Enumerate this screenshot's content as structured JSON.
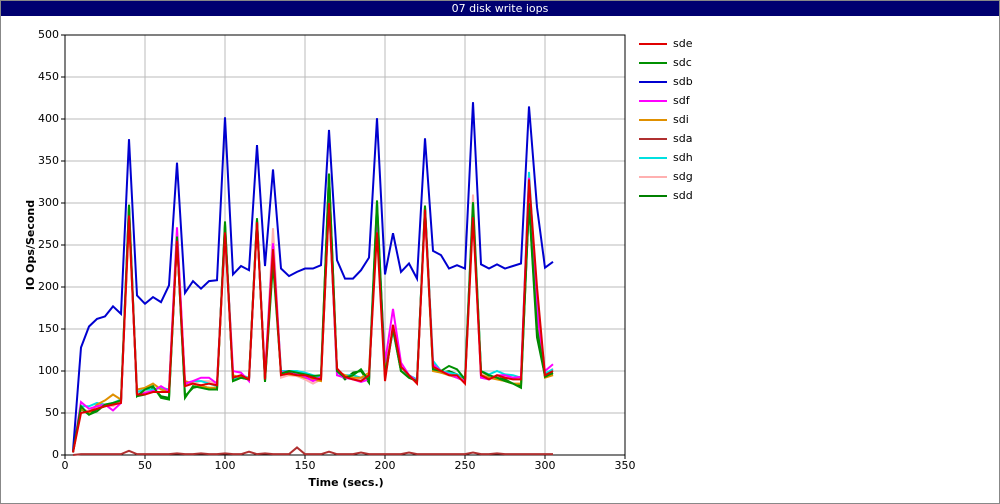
{
  "chart_data": {
    "type": "line",
    "title": "07 disk write iops",
    "x_label": "Time (secs.)",
    "y_label": "IO Ops/Second",
    "x": [
      5,
      10,
      15,
      20,
      25,
      30,
      35,
      40,
      45,
      50,
      55,
      60,
      65,
      70,
      75,
      80,
      85,
      90,
      95,
      100,
      105,
      110,
      115,
      120,
      125,
      130,
      135,
      140,
      145,
      150,
      155,
      160,
      165,
      170,
      175,
      180,
      185,
      190,
      195,
      200,
      205,
      210,
      215,
      220,
      225,
      230,
      235,
      240,
      245,
      250,
      255,
      260,
      265,
      270,
      275,
      280,
      285,
      290,
      295,
      300,
      305
    ],
    "xlim": [
      0,
      350
    ],
    "xticks": [
      0,
      50,
      100,
      150,
      200,
      250,
      300,
      350
    ],
    "ylim": [
      0,
      500
    ],
    "yticks": [
      0,
      50,
      100,
      150,
      200,
      250,
      300,
      350,
      400,
      450,
      500
    ],
    "grid": true,
    "legend": "right",
    "series": [
      {
        "name": "sde",
        "color": "#e00000",
        "values": [
          3,
          50,
          52,
          55,
          58,
          60,
          62,
          285,
          72,
          72,
          75,
          75,
          75,
          255,
          82,
          85,
          83,
          85,
          83,
          265,
          92,
          95,
          90,
          277,
          90,
          245,
          95,
          97,
          95,
          95,
          92,
          90,
          300,
          103,
          93,
          90,
          88,
          95,
          265,
          88,
          155,
          105,
          95,
          85,
          292,
          105,
          100,
          95,
          95,
          85,
          283,
          95,
          90,
          95,
          92,
          90,
          90,
          328,
          200,
          95,
          100
        ]
      },
      {
        "name": "sdc",
        "color": "#009000",
        "values": [
          3,
          58,
          48,
          52,
          60,
          62,
          65,
          297,
          70,
          78,
          82,
          68,
          66,
          260,
          68,
          82,
          80,
          78,
          78,
          278,
          88,
          92,
          90,
          282,
          87,
          228,
          97,
          100,
          98,
          96,
          94,
          95,
          335,
          100,
          92,
          95,
          102,
          88,
          303,
          95,
          150,
          100,
          92,
          88,
          297,
          102,
          100,
          106,
          102,
          90,
          301,
          100,
          95,
          92,
          88,
          85,
          80,
          300,
          150,
          93,
          98
        ]
      },
      {
        "name": "sdb",
        "color": "#0000d0",
        "values": [
          5,
          128,
          153,
          162,
          165,
          177,
          168,
          376,
          190,
          180,
          188,
          182,
          202,
          348,
          193,
          207,
          198,
          207,
          208,
          402,
          215,
          225,
          220,
          369,
          225,
          340,
          222,
          213,
          218,
          222,
          222,
          226,
          387,
          232,
          210,
          210,
          220,
          235,
          401,
          215,
          264,
          218,
          228,
          210,
          377,
          243,
          238,
          222,
          226,
          222,
          420,
          227,
          222,
          227,
          222,
          225,
          228,
          415,
          295,
          223,
          230
        ]
      },
      {
        "name": "sdf",
        "color": "#ff00ff",
        "values": [
          3,
          63,
          55,
          58,
          60,
          53,
          62,
          290,
          72,
          74,
          76,
          82,
          76,
          271,
          85,
          88,
          92,
          92,
          85,
          270,
          100,
          98,
          88,
          278,
          95,
          252,
          98,
          100,
          97,
          93,
          88,
          93,
          310,
          95,
          92,
          90,
          87,
          90,
          285,
          110,
          174,
          110,
          95,
          88,
          290,
          108,
          100,
          96,
          92,
          88,
          290,
          92,
          90,
          95,
          95,
          92,
          93,
          330,
          170,
          100,
          108
        ]
      },
      {
        "name": "sdi",
        "color": "#e09000",
        "values": [
          3,
          55,
          50,
          60,
          65,
          72,
          66,
          280,
          78,
          80,
          85,
          78,
          75,
          258,
          88,
          85,
          82,
          80,
          80,
          270,
          95,
          92,
          92,
          275,
          92,
          240,
          98,
          96,
          95,
          92,
          90,
          88,
          305,
          100,
          95,
          92,
          92,
          98,
          280,
          100,
          150,
          100,
          92,
          88,
          288,
          100,
          98,
          95,
          92,
          88,
          290,
          95,
          92,
          90,
          88,
          85,
          85,
          320,
          160,
          92,
          95
        ]
      },
      {
        "name": "sda",
        "color": "#b03030",
        "values": [
          0,
          1,
          1,
          1,
          1,
          1,
          1,
          5,
          1,
          1,
          1,
          1,
          1,
          2,
          1,
          1,
          2,
          1,
          1,
          2,
          1,
          1,
          4,
          1,
          2,
          1,
          1,
          1,
          9,
          1,
          1,
          1,
          4,
          1,
          1,
          1,
          3,
          1,
          1,
          1,
          1,
          1,
          3,
          1,
          1,
          1,
          1,
          1,
          1,
          1,
          3,
          1,
          1,
          2,
          1,
          1,
          1,
          1,
          1,
          1,
          1
        ]
      },
      {
        "name": "sdh",
        "color": "#00e0e0",
        "values": [
          3,
          58,
          58,
          62,
          60,
          62,
          66,
          290,
          75,
          78,
          78,
          80,
          78,
          262,
          85,
          88,
          88,
          85,
          82,
          272,
          90,
          95,
          92,
          280,
          92,
          248,
          100,
          100,
          100,
          98,
          95,
          92,
          300,
          98,
          95,
          95,
          92,
          95,
          300,
          98,
          148,
          100,
          95,
          90,
          295,
          112,
          100,
          98,
          96,
          92,
          300,
          100,
          96,
          100,
          96,
          95,
          92,
          337,
          180,
          97,
          102
        ]
      },
      {
        "name": "sdg",
        "color": "#ffb0b0",
        "values": [
          3,
          55,
          52,
          58,
          60,
          58,
          65,
          288,
          73,
          75,
          78,
          80,
          78,
          265,
          83,
          86,
          88,
          88,
          84,
          268,
          92,
          95,
          92,
          278,
          90,
          270,
          92,
          95,
          94,
          90,
          85,
          90,
          310,
          98,
          94,
          92,
          90,
          92,
          290,
          96,
          152,
          102,
          94,
          88,
          290,
          104,
          98,
          96,
          94,
          88,
          310,
          97,
          92,
          94,
          93,
          92,
          90,
          325,
          165,
          95,
          103
        ]
      },
      {
        "name": "sdd",
        "color": "#008000",
        "values": [
          3,
          55,
          48,
          55,
          58,
          62,
          64,
          298,
          70,
          72,
          80,
          70,
          68,
          258,
          70,
          80,
          82,
          80,
          78,
          275,
          88,
          92,
          90,
          280,
          88,
          235,
          98,
          98,
          95,
          93,
          94,
          92,
          335,
          100,
          90,
          98,
          100,
          86,
          298,
          92,
          150,
          100,
          94,
          86,
          295,
          104,
          98,
          100,
          96,
          88,
          298,
          100,
          93,
          92,
          90,
          85,
          82,
          300,
          140,
          94,
          96
        ]
      }
    ]
  }
}
